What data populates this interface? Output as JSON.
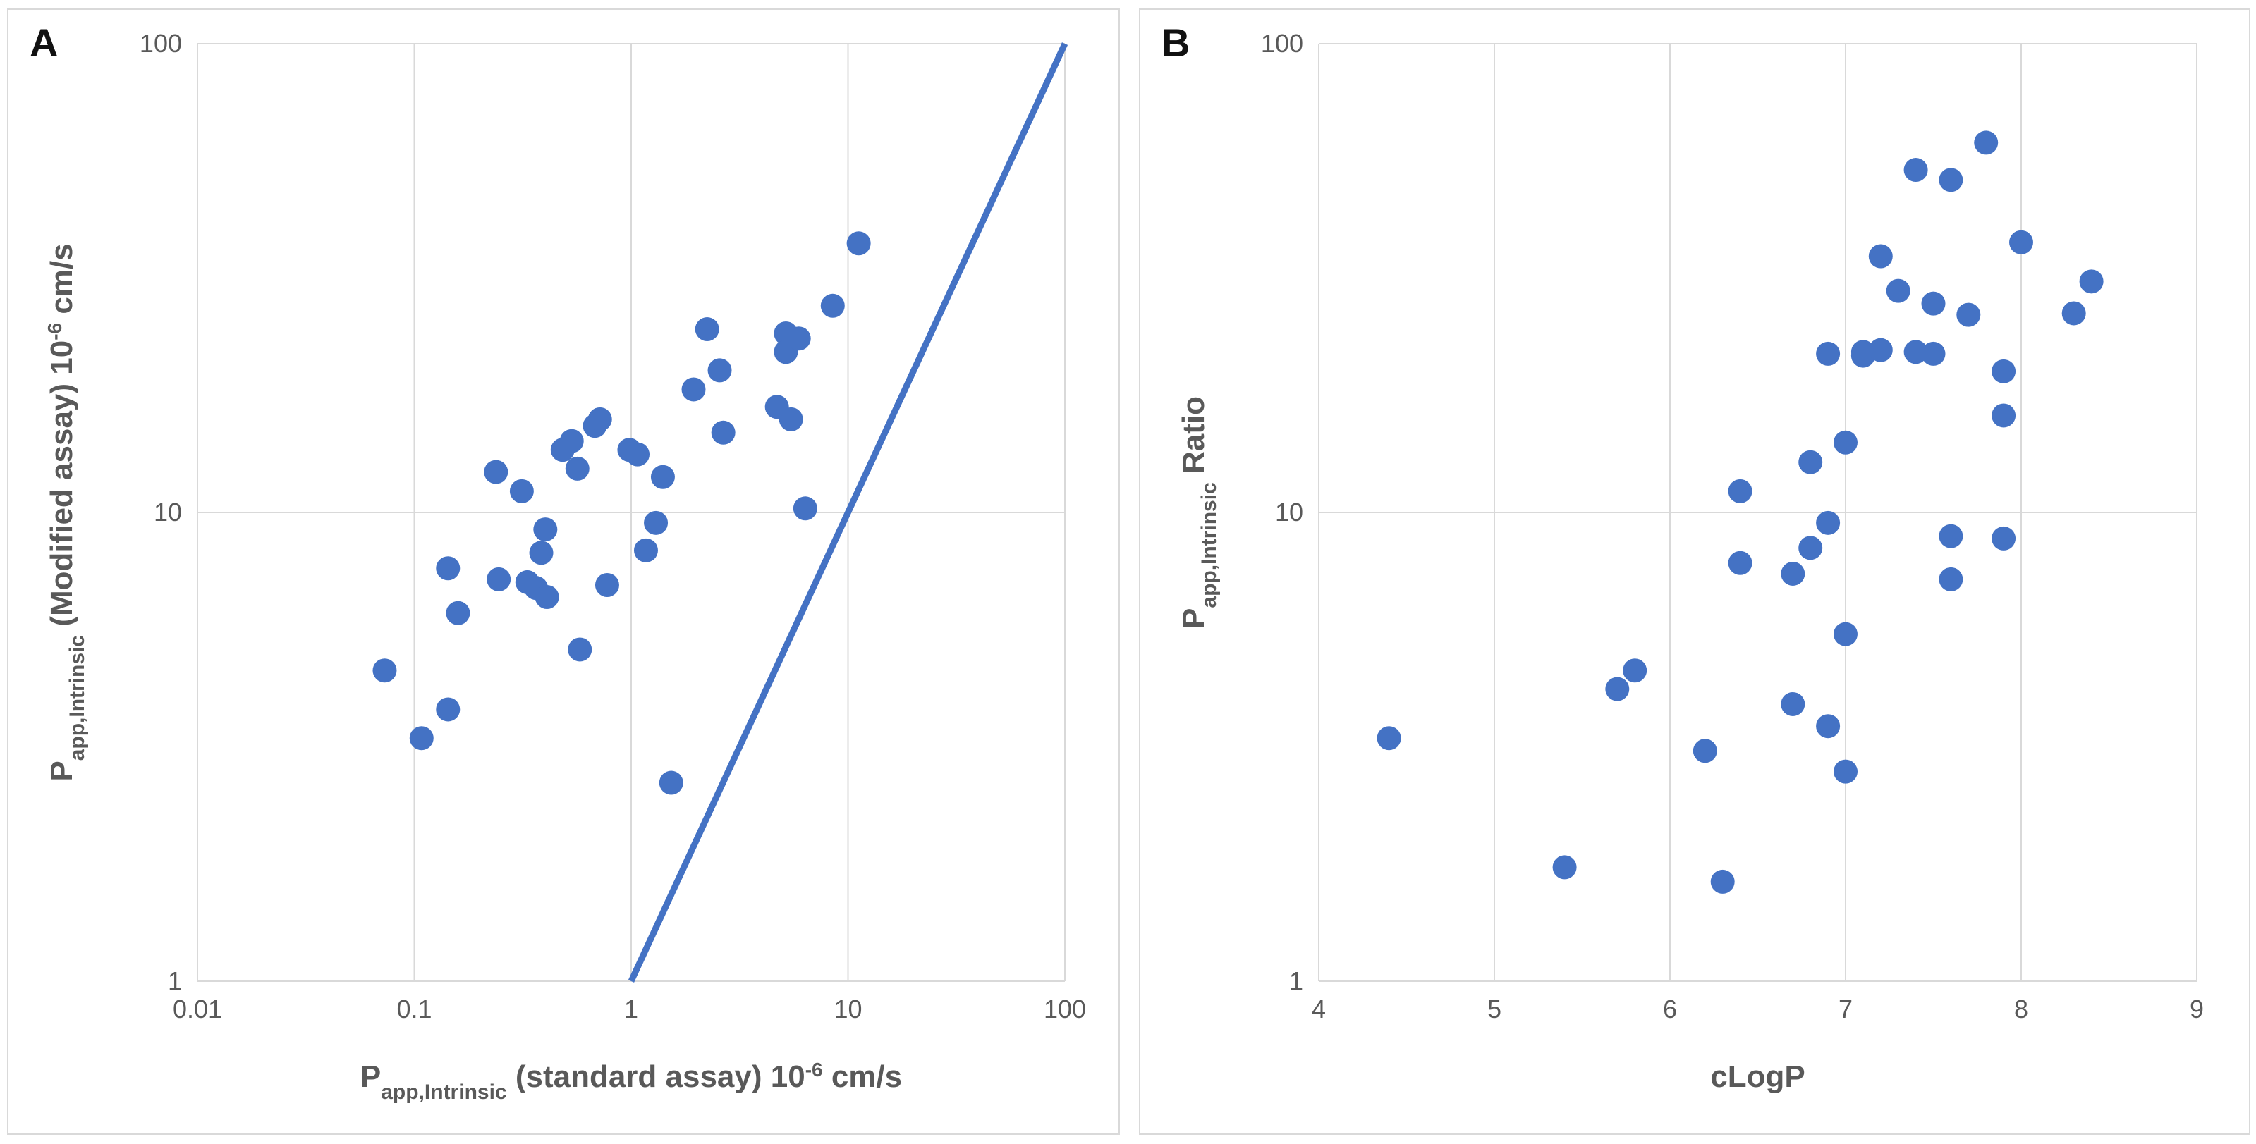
{
  "chart_data": [
    {
      "panel": "A",
      "type": "scatter",
      "x_scale": "log",
      "y_scale": "log",
      "xlim": [
        0.01,
        100
      ],
      "ylim": [
        1,
        100
      ],
      "x_ticks": [
        "0.01",
        "0.1",
        "1",
        "10",
        "100"
      ],
      "y_ticks": [
        "1",
        "10",
        "100"
      ],
      "xlabel": {
        "main": "P",
        "sub": "app,Intrinsic",
        "rest": " (standard assay) 10",
        "sup": "-6",
        "unit": " cm/s"
      },
      "ylabel": {
        "main": "P",
        "sub": "app,Intrinsic",
        "rest": " (Modified assay) 10",
        "sup": "-6",
        "unit": " cm/s"
      },
      "marker_color": "#4472C4",
      "line": {
        "label": "identity (y = x)",
        "points": [
          [
            1,
            1
          ],
          [
            100,
            100
          ]
        ],
        "color": "#4472C4"
      },
      "points": [
        [
          0.073,
          4.6
        ],
        [
          0.108,
          3.3
        ],
        [
          0.143,
          3.8
        ],
        [
          0.143,
          7.6
        ],
        [
          0.159,
          6.1
        ],
        [
          0.238,
          12.2
        ],
        [
          0.245,
          7.2
        ],
        [
          0.313,
          11.1
        ],
        [
          0.332,
          7.1
        ],
        [
          0.364,
          6.9
        ],
        [
          0.385,
          8.2
        ],
        [
          0.402,
          9.2
        ],
        [
          0.409,
          6.6
        ],
        [
          0.483,
          13.6
        ],
        [
          0.532,
          14.2
        ],
        [
          0.565,
          12.4
        ],
        [
          0.58,
          5.1
        ],
        [
          0.68,
          15.3
        ],
        [
          0.718,
          15.8
        ],
        [
          0.775,
          7.0
        ],
        [
          0.981,
          13.6
        ],
        [
          1.07,
          13.3
        ],
        [
          1.17,
          8.3
        ],
        [
          1.3,
          9.5
        ],
        [
          1.4,
          11.9
        ],
        [
          1.53,
          2.65
        ],
        [
          1.94,
          18.3
        ],
        [
          2.24,
          24.6
        ],
        [
          2.56,
          20.1
        ],
        [
          2.66,
          14.8
        ],
        [
          4.7,
          16.8
        ],
        [
          5.17,
          24.1
        ],
        [
          5.17,
          22.0
        ],
        [
          5.46,
          15.8
        ],
        [
          5.93,
          23.5
        ],
        [
          6.35,
          10.2
        ],
        [
          8.5,
          27.6
        ],
        [
          11.2,
          37.5
        ]
      ]
    },
    {
      "panel": "B",
      "type": "scatter",
      "x_scale": "linear",
      "y_scale": "log",
      "xlim": [
        4,
        9
      ],
      "ylim": [
        1,
        100
      ],
      "x_ticks": [
        "4",
        "5",
        "6",
        "7",
        "8",
        "9"
      ],
      "y_ticks": [
        "1",
        "10",
        "100"
      ],
      "xlabel": {
        "main": "cLogP"
      },
      "ylabel": {
        "main": "P",
        "sub": "app,Intrinsic",
        "rest": " Ratio"
      },
      "marker_color": "#4472C4",
      "points": [
        [
          4.4,
          3.3
        ],
        [
          5.4,
          1.75
        ],
        [
          5.7,
          4.2
        ],
        [
          5.8,
          4.6
        ],
        [
          6.2,
          3.1
        ],
        [
          6.3,
          1.63
        ],
        [
          6.4,
          11.1
        ],
        [
          6.4,
          7.8
        ],
        [
          6.7,
          7.4
        ],
        [
          6.7,
          3.9
        ],
        [
          6.8,
          12.8
        ],
        [
          6.8,
          8.4
        ],
        [
          6.9,
          21.8
        ],
        [
          6.9,
          9.5
        ],
        [
          6.9,
          3.5
        ],
        [
          7.0,
          14.1
        ],
        [
          7.0,
          5.5
        ],
        [
          7.0,
          2.8
        ],
        [
          7.1,
          22.0
        ],
        [
          7.1,
          21.6
        ],
        [
          7.2,
          35.2
        ],
        [
          7.2,
          22.2
        ],
        [
          7.3,
          29.7
        ],
        [
          7.4,
          53.8
        ],
        [
          7.4,
          22.0
        ],
        [
          7.5,
          27.9
        ],
        [
          7.5,
          21.8
        ],
        [
          7.6,
          51.2
        ],
        [
          7.6,
          8.9
        ],
        [
          7.6,
          7.2
        ],
        [
          7.7,
          26.4
        ],
        [
          7.8,
          61.5
        ],
        [
          7.9,
          20.0
        ],
        [
          7.9,
          16.1
        ],
        [
          7.9,
          8.8
        ],
        [
          8.0,
          37.7
        ],
        [
          8.3,
          26.6
        ],
        [
          8.4,
          31.1
        ]
      ]
    }
  ],
  "panels": {
    "a_letter": "A",
    "b_letter": "B"
  }
}
